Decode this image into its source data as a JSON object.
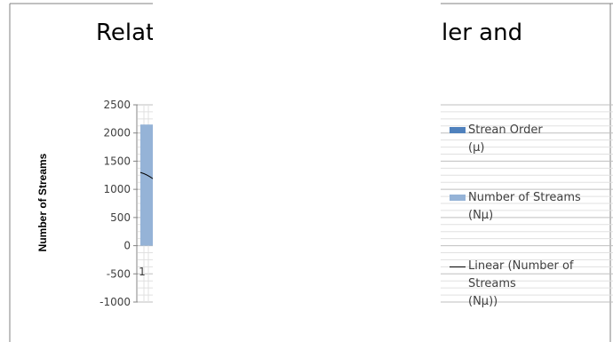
{
  "chart_data": {
    "type": "bar",
    "title_visible_left": "Relat",
    "title_visible_right": "ler and",
    "ylabel": "Number of Streams",
    "ylim": [
      -1000,
      2500
    ],
    "yticks": [
      2500,
      2000,
      1500,
      1000,
      500,
      0,
      -500,
      -1000
    ],
    "categories": [
      "1"
    ],
    "series": [
      {
        "name": "Strean Order (μ)",
        "values": [
          1
        ],
        "color": "#4f81bd"
      },
      {
        "name": "Number of Streams (Nμ)",
        "values": [
          2150
        ],
        "color": "#95b3d7"
      }
    ],
    "trendline": {
      "name": "Linear (Number of Streams (Nμ))",
      "type": "linear",
      "color": "#000000",
      "value_at_1": 1300
    },
    "grid": true,
    "legend": "right"
  },
  "legend": {
    "item1_line1": "Strean Order",
    "item1_line2": "(μ)",
    "item2_line1": "Number of Streams",
    "item2_line2": "(Nμ)",
    "item3_line1": "Linear (Number of",
    "item3_line2": "Streams",
    "item3_line3": "(Nμ))"
  }
}
